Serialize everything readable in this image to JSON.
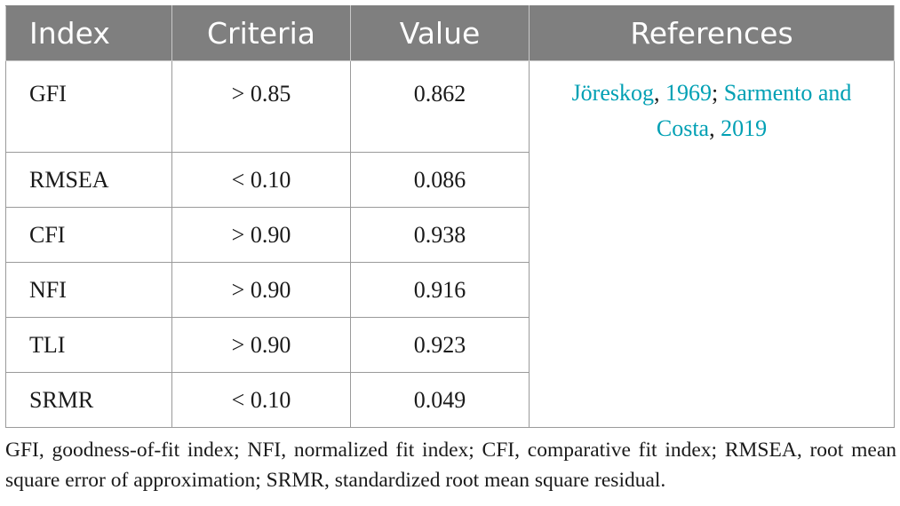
{
  "table": {
    "headers": [
      "Index",
      "Criteria",
      "Value",
      "References"
    ],
    "rows": [
      {
        "index": "GFI",
        "criteria": "> 0.85",
        "value": "0.862"
      },
      {
        "index": "RMSEA",
        "criteria": "< 0.10",
        "value": "0.086"
      },
      {
        "index": "CFI",
        "criteria": "> 0.90",
        "value": "0.938"
      },
      {
        "index": "NFI",
        "criteria": "> 0.90",
        "value": "0.916"
      },
      {
        "index": "TLI",
        "criteria": "> 0.90",
        "value": "0.923"
      },
      {
        "index": "SRMR",
        "criteria": "< 0.10",
        "value": "0.049"
      }
    ],
    "references": {
      "ref1_author": "Jöreskog",
      "sep1": ", ",
      "ref1_year": "1969",
      "sep2": "; ",
      "ref2_author": "Sarmento and Costa",
      "sep3": ", ",
      "ref2_year": "2019"
    },
    "link_color": "#00a0b4",
    "header_bg": "#7f7f7f"
  },
  "footnote": "GFI, goodness-of-fit index; NFI, normalized fit index; CFI, comparative fit index; RMSEA, root mean square error of approximation; SRMR, standardized root mean square residual."
}
